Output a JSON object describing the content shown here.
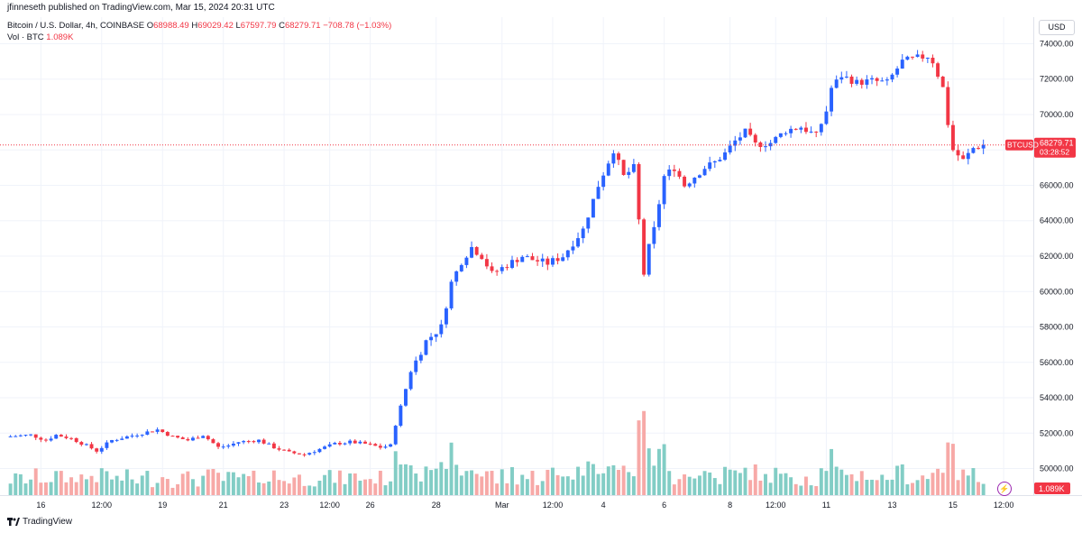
{
  "header": {
    "publisher": "jfinneseth published on TradingView.com, Mar 15, 2024 20:31 UTC"
  },
  "legend": {
    "symbol": "Bitcoin / U.S. Dollar, 4h, COINBASE",
    "o_label": "O",
    "o_value": "68988.49",
    "h_label": "H",
    "h_value": "69029.42",
    "l_label": "L",
    "l_value": "67597.79",
    "c_label": "C",
    "c_value": "68279.71",
    "change": "−708.78 (−1.03%)",
    "vol_label": "Vol · BTC",
    "vol_value": "1.089K"
  },
  "currency": "USD",
  "price_tag": {
    "symbol": "BTCUSD",
    "price": "68279.71",
    "countdown": "03:28:52"
  },
  "volume_tag": "1.089K",
  "brand": "TradingView",
  "colors": {
    "up": "#2962ff",
    "down": "#f23645",
    "vol_up": "#82cdc5",
    "vol_down": "#f7a9a7",
    "grid": "#f0f3fa"
  },
  "icons": {
    "brand": "tradingview-logo-icon",
    "alert": "lightning-icon"
  },
  "chart_data": {
    "type": "candlestick",
    "title": "Bitcoin / U.S. Dollar, 4h, COINBASE",
    "y_ticks": [
      50000,
      52000,
      54000,
      56000,
      58000,
      60000,
      62000,
      64000,
      66000,
      68000,
      70000,
      72000,
      74000
    ],
    "y_range": [
      48500,
      75500
    ],
    "x_range": [
      0,
      200
    ],
    "x_ticks": [
      {
        "x": 7,
        "label": "16"
      },
      {
        "x": 19,
        "label": "12:00"
      },
      {
        "x": 31,
        "label": "19"
      },
      {
        "x": 43,
        "label": "21"
      },
      {
        "x": 55,
        "label": "23"
      },
      {
        "x": 64,
        "label": "12:00"
      },
      {
        "x": 72,
        "label": "26"
      },
      {
        "x": 85,
        "label": "28"
      },
      {
        "x": 98,
        "label": "Mar"
      },
      {
        "x": 108,
        "label": "12:00"
      },
      {
        "x": 118,
        "label": "4"
      },
      {
        "x": 130,
        "label": "6"
      },
      {
        "x": 143,
        "label": "8"
      },
      {
        "x": 152,
        "label": "12:00"
      },
      {
        "x": 162,
        "label": "11"
      },
      {
        "x": 175,
        "label": "13"
      },
      {
        "x": 187,
        "label": "15"
      },
      {
        "x": 197,
        "label": "12:00"
      }
    ],
    "last_price": 68279.71,
    "waypoints": [
      [
        0,
        51800
      ],
      [
        5,
        51900
      ],
      [
        8,
        51600
      ],
      [
        10,
        51900
      ],
      [
        13,
        51700
      ],
      [
        16,
        51300
      ],
      [
        18,
        51000
      ],
      [
        21,
        51600
      ],
      [
        24,
        51800
      ],
      [
        27,
        52000
      ],
      [
        30,
        52200
      ],
      [
        33,
        51800
      ],
      [
        36,
        51600
      ],
      [
        39,
        51900
      ],
      [
        42,
        51200
      ],
      [
        44,
        51300
      ],
      [
        46,
        51500
      ],
      [
        50,
        51600
      ],
      [
        53,
        51200
      ],
      [
        56,
        50900
      ],
      [
        59,
        50800
      ],
      [
        62,
        51100
      ],
      [
        65,
        51400
      ],
      [
        68,
        51500
      ],
      [
        71,
        51400
      ],
      [
        74,
        51200
      ],
      [
        76,
        51300
      ],
      [
        77,
        52500
      ],
      [
        80,
        55500
      ],
      [
        83,
        57200
      ],
      [
        86,
        58000
      ],
      [
        88,
        60500
      ],
      [
        90,
        61700
      ],
      [
        92,
        62500
      ],
      [
        94,
        62000
      ],
      [
        96,
        61000
      ],
      [
        99,
        61500
      ],
      [
        102,
        62000
      ],
      [
        104,
        61800
      ],
      [
        107,
        61600
      ],
      [
        110,
        62000
      ],
      [
        114,
        63500
      ],
      [
        117,
        66000
      ],
      [
        120,
        68000
      ],
      [
        122,
        66500
      ],
      [
        124,
        67000
      ],
      [
        126,
        61000
      ],
      [
        127,
        62500
      ],
      [
        128,
        63500
      ],
      [
        130,
        66500
      ],
      [
        132,
        67000
      ],
      [
        134,
        66000
      ],
      [
        136,
        66500
      ],
      [
        138,
        67000
      ],
      [
        140,
        67300
      ],
      [
        142,
        67800
      ],
      [
        144,
        68500
      ],
      [
        146,
        69000
      ],
      [
        148,
        68300
      ],
      [
        151,
        68400
      ],
      [
        154,
        69100
      ],
      [
        157,
        69300
      ],
      [
        160,
        68800
      ],
      [
        162,
        70200
      ],
      [
        163,
        71500
      ],
      [
        165,
        72200
      ],
      [
        168,
        71800
      ],
      [
        171,
        71900
      ],
      [
        174,
        71800
      ],
      [
        177,
        73000
      ],
      [
        180,
        73200
      ],
      [
        182,
        73300
      ],
      [
        183,
        73000
      ],
      [
        185,
        71500
      ],
      [
        186,
        69500
      ],
      [
        187,
        68000
      ],
      [
        189,
        67400
      ],
      [
        191,
        68100
      ],
      [
        193,
        68300
      ]
    ]
  }
}
